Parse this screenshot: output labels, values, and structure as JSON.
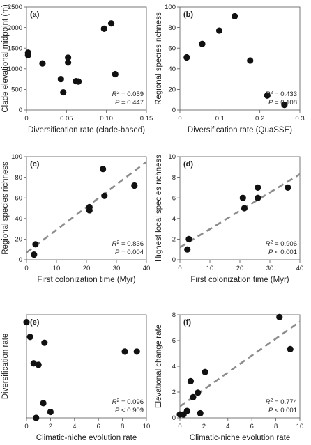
{
  "figure": {
    "background": "#ffffff",
    "point_color": "#111111",
    "fit_line_color": "#8c8c8c"
  },
  "chart_data": [
    {
      "type": "scatter",
      "panel": "(a)",
      "xlabel": "Diversification rate (clade-based)",
      "ylabel": "Clade elevational midpoint (m)",
      "xlim": [
        0,
        0.15
      ],
      "ylim": [
        0,
        2500
      ],
      "xticks": [
        "0",
        "0.05",
        "0.10",
        "0.15"
      ],
      "yticks": [
        "0",
        "500",
        "1000",
        "1500",
        "2000",
        "2500"
      ],
      "points": [
        {
          "x": 0.002,
          "y": 1390
        },
        {
          "x": 0.002,
          "y": 1330
        },
        {
          "x": 0.02,
          "y": 1130
        },
        {
          "x": 0.043,
          "y": 750
        },
        {
          "x": 0.046,
          "y": 430
        },
        {
          "x": 0.052,
          "y": 1270
        },
        {
          "x": 0.052,
          "y": 1150
        },
        {
          "x": 0.062,
          "y": 700
        },
        {
          "x": 0.065,
          "y": 690
        },
        {
          "x": 0.097,
          "y": 1970
        },
        {
          "x": 0.106,
          "y": 2100
        },
        {
          "x": 0.111,
          "y": 870
        }
      ],
      "fit_line": null,
      "stats": {
        "r2_label": "R",
        "r2_value": "= 0.059",
        "p_label": "P",
        "p_value": "= 0.447"
      }
    },
    {
      "type": "scatter",
      "panel": "(b)",
      "xlabel": "Diversification rate (QuaSSE)",
      "ylabel": "Regional species richness",
      "xlim": [
        0,
        0.35
      ],
      "ylim": [
        0,
        100
      ],
      "xticks": [
        "0",
        "0.1",
        "0.2",
        "0.3"
      ],
      "yticks": [
        "0",
        "20",
        "40",
        "60",
        "80",
        "100"
      ],
      "points": [
        {
          "x": 0.02,
          "y": 51
        },
        {
          "x": 0.065,
          "y": 64
        },
        {
          "x": 0.115,
          "y": 77
        },
        {
          "x": 0.16,
          "y": 91
        },
        {
          "x": 0.205,
          "y": 48
        },
        {
          "x": 0.255,
          "y": 14
        },
        {
          "x": 0.305,
          "y": 5
        }
      ],
      "fit_line": null,
      "stats": {
        "r2_label": "R",
        "r2_value": "= 0.433",
        "p_label": "P",
        "p_value": "= 0.108"
      }
    },
    {
      "type": "scatter",
      "panel": "(c)",
      "xlabel": "First colonization time (Myr)",
      "ylabel": "Regional species richness",
      "xlim": [
        0,
        40
      ],
      "ylim": [
        0,
        100
      ],
      "xticks": [
        "0",
        "10",
        "20",
        "30",
        "40"
      ],
      "yticks": [
        "0",
        "20",
        "40",
        "60",
        "80",
        "100"
      ],
      "points": [
        {
          "x": 2.5,
          "y": 5
        },
        {
          "x": 3,
          "y": 15
        },
        {
          "x": 21,
          "y": 48
        },
        {
          "x": 21,
          "y": 51
        },
        {
          "x": 25.5,
          "y": 88
        },
        {
          "x": 26,
          "y": 62
        },
        {
          "x": 36,
          "y": 72
        }
      ],
      "fit_line": {
        "x": [
          0,
          40
        ],
        "y": [
          7,
          95
        ]
      },
      "stats": {
        "r2_label": "R",
        "r2_value": "= 0.836",
        "p_label": "P",
        "p_value": "= 0.004"
      }
    },
    {
      "type": "scatter",
      "panel": "(d)",
      "xlabel": "First colonization time (Myr)",
      "ylabel": "Highest local species richness",
      "xlim": [
        0,
        40
      ],
      "ylim": [
        0,
        10
      ],
      "xticks": [
        "0",
        "10",
        "20",
        "30",
        "40"
      ],
      "yticks": [
        "0",
        "2",
        "4",
        "6",
        "8",
        "10"
      ],
      "points": [
        {
          "x": 2.5,
          "y": 1
        },
        {
          "x": 3,
          "y": 2
        },
        {
          "x": 21,
          "y": 6
        },
        {
          "x": 21.5,
          "y": 5
        },
        {
          "x": 26,
          "y": 6
        },
        {
          "x": 26,
          "y": 7
        },
        {
          "x": 36,
          "y": 7
        }
      ],
      "fit_line": {
        "x": [
          0,
          40
        ],
        "y": [
          1.2,
          8.3
        ]
      },
      "stats": {
        "r2_label": "R",
        "r2_value": "= 0.906",
        "p_label": "P",
        "p_value": "< 0.001"
      }
    },
    {
      "type": "scatter",
      "panel": "(e)",
      "xlabel": "Climatic-niche evolution rate",
      "ylabel": "Diversification rate",
      "xlim": [
        0,
        10
      ],
      "ylim": [
        0,
        0.14
      ],
      "xticks": [
        "0",
        "2",
        "4",
        "6",
        "8",
        "10"
      ],
      "yticks": [],
      "points": [
        {
          "x": 0,
          "y": 0.13
        },
        {
          "x": 0.3,
          "y": 0.11
        },
        {
          "x": 0.6,
          "y": 0.074
        },
        {
          "x": 1.0,
          "y": 0.072
        },
        {
          "x": 1.5,
          "y": 0.102
        },
        {
          "x": 1.4,
          "y": 0.02
        },
        {
          "x": 2.0,
          "y": 0.008
        },
        {
          "x": 0.8,
          "y": 0.0
        },
        {
          "x": 8.2,
          "y": 0.09
        },
        {
          "x": 9.2,
          "y": 0.09
        }
      ],
      "fit_line": null,
      "stats": {
        "r2_label": "R",
        "r2_value": "= 0.096",
        "p_label": "P",
        "p_value": "< 0.909"
      }
    },
    {
      "type": "scatter",
      "panel": "(f)",
      "xlabel": "Climatic-niche evolution rate",
      "ylabel": "Elevational change rate",
      "xlim": [
        0,
        10
      ],
      "ylim": [
        0,
        9
      ],
      "xticks": [
        "0",
        "2",
        "4",
        "6",
        "8",
        "10"
      ],
      "yticks": [
        "0",
        "2",
        "4",
        "6",
        "8"
      ],
      "points": [
        {
          "x": 0,
          "y": 0.3
        },
        {
          "x": 0.3,
          "y": 0.3
        },
        {
          "x": 0.6,
          "y": 0.6
        },
        {
          "x": 0.9,
          "y": 3.2
        },
        {
          "x": 1.1,
          "y": 1.8
        },
        {
          "x": 1.5,
          "y": 2.2
        },
        {
          "x": 1.7,
          "y": 0.4
        },
        {
          "x": 2.1,
          "y": 4.0
        },
        {
          "x": 8.3,
          "y": 8.8
        },
        {
          "x": 9.2,
          "y": 6.0
        }
      ],
      "fit_line": {
        "x": [
          0,
          10
        ],
        "y": [
          1.0,
          8.4
        ]
      },
      "stats": {
        "r2_label": "R",
        "r2_value": "= 0.774",
        "p_label": "P",
        "p_value": "< 0.001"
      }
    }
  ]
}
